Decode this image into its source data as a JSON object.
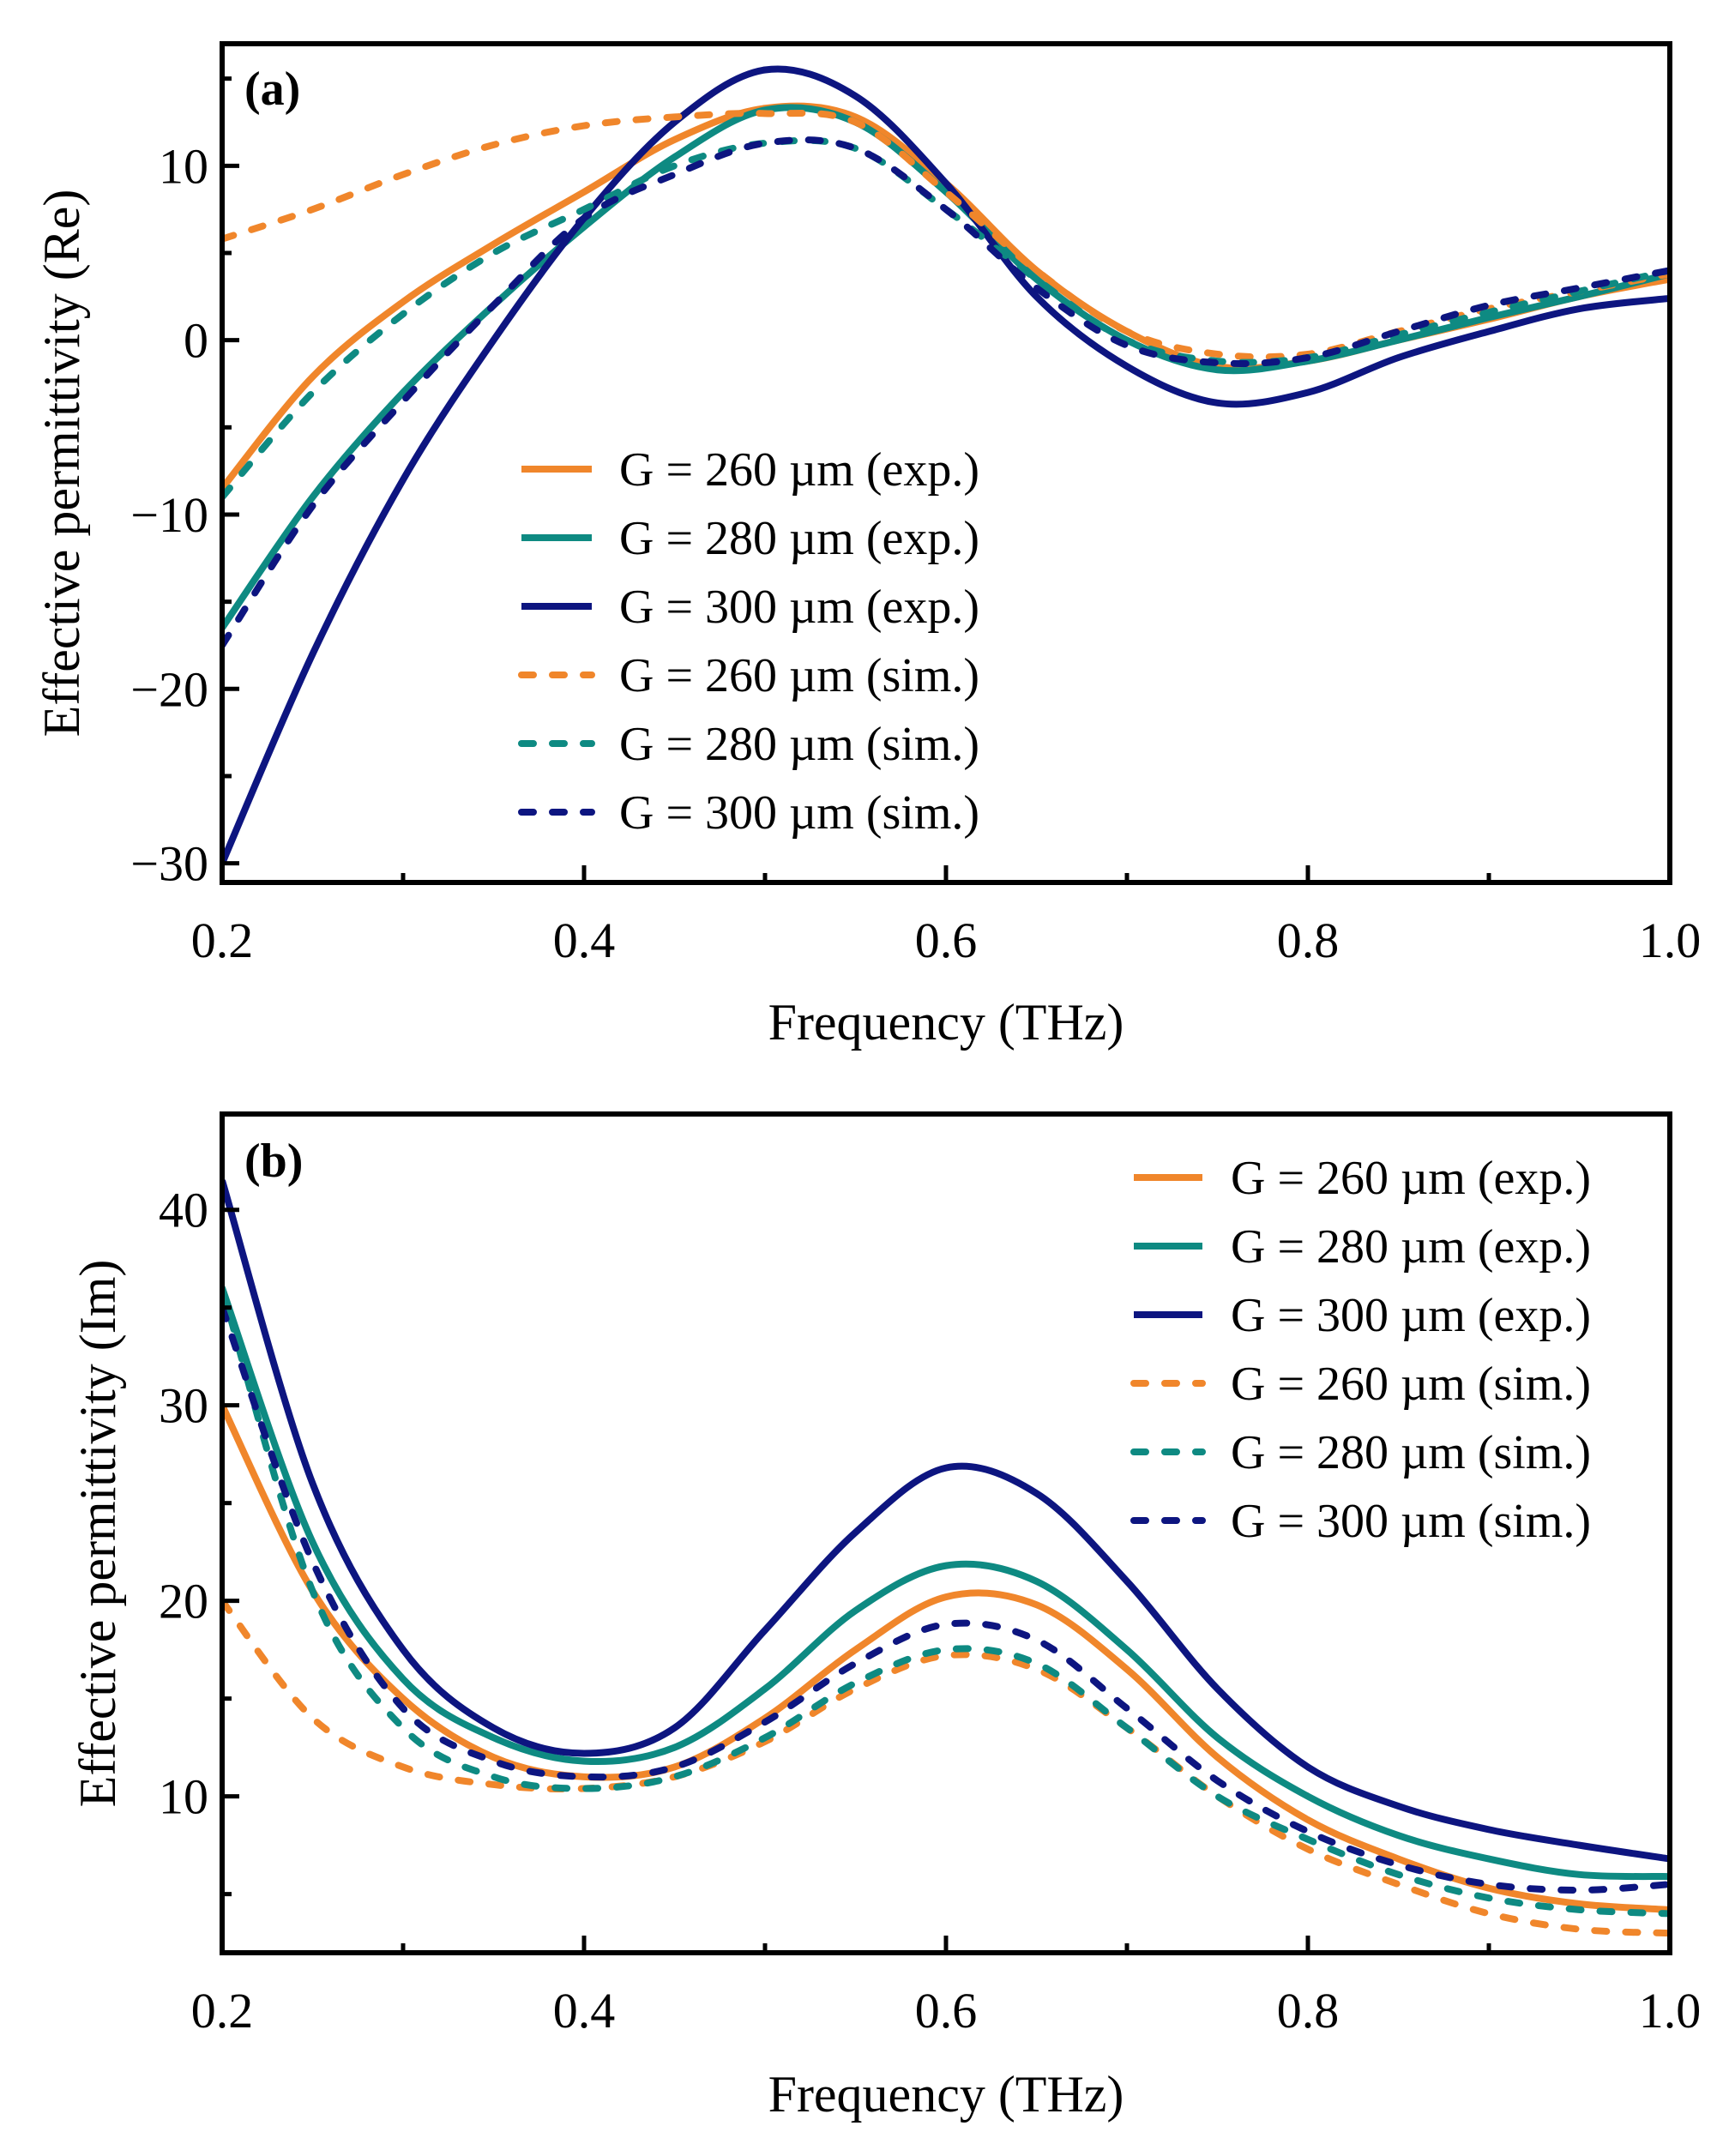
{
  "colors": {
    "G260": "#f0862b",
    "G280": "#0e8a82",
    "G300": "#0d1580"
  },
  "chart_data": [
    {
      "type": "line",
      "panel_label": "(a)",
      "xlabel": "Frequency (THz)",
      "ylabel": "Effective permittivity (Re)",
      "xlim": [
        0.2,
        1.0
      ],
      "ylim": [
        -31.1,
        17.0
      ],
      "xticks": [
        0.2,
        0.4,
        0.6,
        0.8,
        1.0
      ],
      "xtick_labels": [
        "0.2",
        "0.4",
        "0.6",
        "0.8",
        "1.0"
      ],
      "xminor": [
        0.3,
        0.5,
        0.7,
        0.9
      ],
      "yticks": [
        -30,
        -20,
        -10,
        0,
        10
      ],
      "ytick_labels": [
        "−30",
        "−20",
        "−10",
        "0",
        "10"
      ],
      "yminor": [
        -25,
        -15,
        -5,
        5,
        15
      ],
      "legend_position": "center",
      "x": [
        0.2,
        0.25,
        0.3,
        0.35,
        0.4,
        0.45,
        0.5,
        0.55,
        0.6,
        0.65,
        0.7,
        0.75,
        0.8,
        0.85,
        0.9,
        0.95,
        1.0
      ],
      "series": [
        {
          "name": "G = 260 µm (exp.)",
          "color_key": "G260",
          "dashed": false,
          "values": [
            -8.5,
            -2.1,
            2.2,
            5.5,
            8.5,
            11.5,
            13.3,
            12.8,
            9,
            4,
            0.5,
            -1.5,
            -1.2,
            0,
            1.2,
            2.5,
            3.5
          ]
        },
        {
          "name": "G = 280 µm (exp.)",
          "color_key": "G280",
          "dashed": false,
          "values": [
            -16.5,
            -9,
            -3,
            2,
            6.5,
            10.5,
            13.2,
            12.5,
            8.5,
            3.5,
            0,
            -1.7,
            -1.2,
            0,
            1.3,
            2.5,
            3.8
          ]
        },
        {
          "name": "G = 300 µm (exp.)",
          "color_key": "G300",
          "dashed": false,
          "values": [
            -30,
            -18,
            -8,
            0,
            7,
            12.5,
            15.5,
            14,
            9,
            2.5,
            -1.5,
            -3.6,
            -3,
            -1,
            0.5,
            1.8,
            2.4
          ]
        },
        {
          "name": "G = 260 µm (sim.)",
          "color_key": "G260",
          "dashed": true,
          "values": [
            5.8,
            7.5,
            9.5,
            11.2,
            12.3,
            12.8,
            13.0,
            12.5,
            8.5,
            4,
            0.5,
            -0.8,
            -0.8,
            0.5,
            1.8,
            2.8,
            3.8
          ]
        },
        {
          "name": "G = 280 µm (sim.)",
          "color_key": "G280",
          "dashed": true,
          "values": [
            -9,
            -3,
            1.5,
            5,
            7.5,
            10,
            11.3,
            11,
            7.5,
            3.5,
            0,
            -1.2,
            -1.0,
            0.3,
            1.6,
            2.8,
            4.0
          ]
        },
        {
          "name": "G = 300 µm (sim.)",
          "color_key": "G300",
          "dashed": true,
          "values": [
            -17.5,
            -9.5,
            -3.5,
            2,
            7,
            9.5,
            11.3,
            11,
            7.5,
            3,
            -0.3,
            -1.3,
            -1,
            0.5,
            2,
            3,
            4
          ]
        }
      ]
    },
    {
      "type": "line",
      "panel_label": "(b)",
      "xlabel": "Frequency (THz)",
      "ylabel": "Effective permittivity (Im)",
      "xlim": [
        0.2,
        1.0
      ],
      "ylim": [
        2.0,
        44.9
      ],
      "xticks": [
        0.2,
        0.4,
        0.6,
        0.8,
        1.0
      ],
      "xtick_labels": [
        "0.2",
        "0.4",
        "0.6",
        "0.8",
        "1.0"
      ],
      "xminor": [
        0.3,
        0.5,
        0.7,
        0.9
      ],
      "yticks": [
        10,
        20,
        30,
        40
      ],
      "ytick_labels": [
        "10",
        "20",
        "30",
        "40"
      ],
      "yminor": [
        5,
        15,
        25,
        35
      ],
      "legend_position": "top-right",
      "x": [
        0.2,
        0.25,
        0.3,
        0.35,
        0.4,
        0.45,
        0.5,
        0.55,
        0.6,
        0.65,
        0.7,
        0.75,
        0.8,
        0.85,
        0.9,
        0.95,
        1.0
      ],
      "series": [
        {
          "name": "G = 260 µm (exp.)",
          "color_key": "G260",
          "dashed": false,
          "values": [
            30,
            20.5,
            15,
            12,
            11,
            11.5,
            14,
            17.5,
            20.2,
            19.8,
            16.5,
            12,
            8.8,
            6.8,
            5.3,
            4.5,
            4.2
          ]
        },
        {
          "name": "G = 280 µm (exp.)",
          "color_key": "G280",
          "dashed": false,
          "values": [
            36,
            23,
            16,
            13,
            11.8,
            12.5,
            15.5,
            19.5,
            21.8,
            21,
            17.5,
            13,
            10,
            8,
            6.8,
            6,
            5.9
          ]
        },
        {
          "name": "G = 300 µm (exp.)",
          "color_key": "G300",
          "dashed": false,
          "values": [
            41.5,
            26,
            17.5,
            13.5,
            12.2,
            13.5,
            18.5,
            23.5,
            26.8,
            25.5,
            21,
            15.5,
            11.5,
            9.5,
            8.3,
            7.5,
            6.8
          ]
        },
        {
          "name": "G = 260 µm (sim.)",
          "color_key": "G260",
          "dashed": true,
          "values": [
            20,
            14,
            11.5,
            10.6,
            10.4,
            11,
            12.8,
            15.5,
            17.2,
            16.5,
            13.5,
            10,
            7.3,
            5.5,
            4,
            3.2,
            3.0
          ]
        },
        {
          "name": "G = 280 µm (sim.)",
          "color_key": "G280",
          "dashed": true,
          "values": [
            36,
            20.5,
            13.5,
            11,
            10.4,
            11,
            13,
            15.8,
            17.5,
            16.8,
            13.5,
            10,
            7.8,
            6,
            4.8,
            4.2,
            4.0
          ]
        },
        {
          "name": "G = 300 µm (sim.)",
          "color_key": "G300",
          "dashed": true,
          "values": [
            35,
            22,
            14.5,
            11.8,
            11,
            11.5,
            13.8,
            16.8,
            18.8,
            18,
            14.5,
            10.8,
            8.2,
            6.5,
            5.5,
            5.2,
            5.5
          ]
        }
      ]
    }
  ]
}
